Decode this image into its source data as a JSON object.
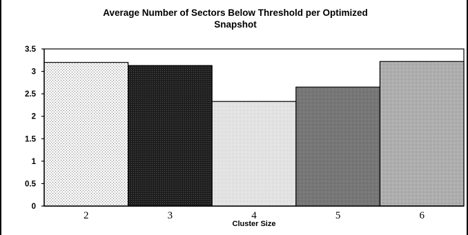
{
  "chart_data": {
    "type": "bar",
    "title_line1": "Average Number of Sectors Below Threshold per Optimized",
    "title_line2": "Snapshot",
    "xlabel": "Cluster Size",
    "ylabel": "",
    "categories": [
      "2",
      "3",
      "4",
      "5",
      "6"
    ],
    "values": [
      3.2,
      3.13,
      2.33,
      2.65,
      3.22
    ],
    "ylim": [
      0,
      3.5
    ],
    "yticks": [
      "0",
      "0.5",
      "1",
      "1.5",
      "2",
      "2.5",
      "3",
      "3.5"
    ],
    "grid": false,
    "legend": "none",
    "bar_styles": [
      {
        "fill": "#ececec",
        "pattern": "sparse-dots"
      },
      {
        "fill": "#2a2a2a",
        "pattern": "dense-dark"
      },
      {
        "fill": "#e6e6e6",
        "pattern": "fine-light"
      },
      {
        "fill": "#6e6e6e",
        "pattern": "medium-grey"
      },
      {
        "fill": "#a8a8a8",
        "pattern": "light-grey"
      }
    ]
  }
}
